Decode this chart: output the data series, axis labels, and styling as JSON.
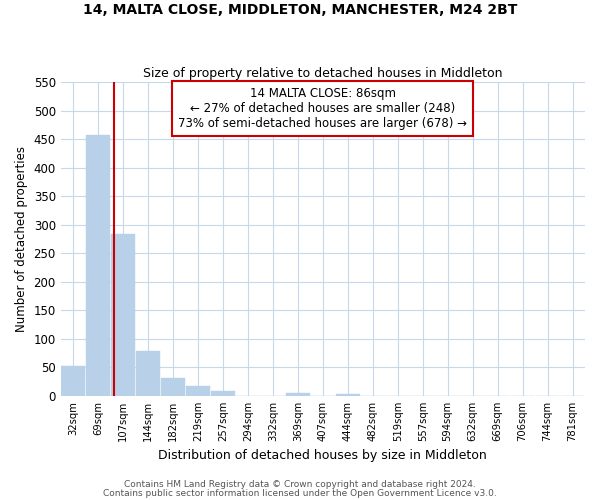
{
  "title": "14, MALTA CLOSE, MIDDLETON, MANCHESTER, M24 2BT",
  "subtitle": "Size of property relative to detached houses in Middleton",
  "xlabel": "Distribution of detached houses by size in Middleton",
  "ylabel": "Number of detached properties",
  "categories": [
    "32sqm",
    "69sqm",
    "107sqm",
    "144sqm",
    "182sqm",
    "219sqm",
    "257sqm",
    "294sqm",
    "332sqm",
    "369sqm",
    "407sqm",
    "444sqm",
    "482sqm",
    "519sqm",
    "557sqm",
    "594sqm",
    "632sqm",
    "669sqm",
    "706sqm",
    "744sqm",
    "781sqm"
  ],
  "values": [
    53,
    457,
    283,
    78,
    32,
    17,
    9,
    0,
    0,
    6,
    0,
    4,
    0,
    0,
    0,
    0,
    0,
    0,
    0,
    0,
    0
  ],
  "bar_color": "#b8d0e8",
  "vline_color": "#cc0000",
  "vline_x": 1.65,
  "annotation_line1": "14 MALTA CLOSE: 86sqm",
  "annotation_line2": "← 27% of detached houses are smaller (248)",
  "annotation_line3": "73% of semi-detached houses are larger (678) →",
  "ylim": [
    0,
    550
  ],
  "yticks": [
    0,
    50,
    100,
    150,
    200,
    250,
    300,
    350,
    400,
    450,
    500,
    550
  ],
  "footer1": "Contains HM Land Registry data © Crown copyright and database right 2024.",
  "footer2": "Contains public sector information licensed under the Open Government Licence v3.0.",
  "background_color": "#ffffff",
  "grid_color": "#c8d8ea"
}
